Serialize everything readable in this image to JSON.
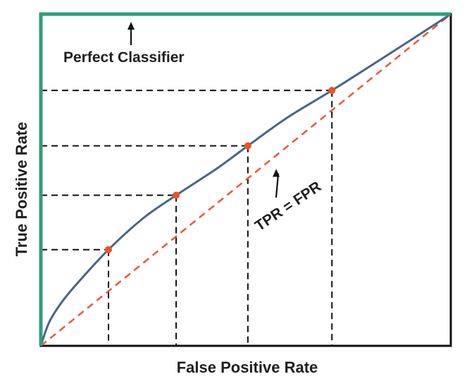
{
  "chart_data": {
    "type": "line",
    "xlabel": "False Positive Rate",
    "ylabel": "True Positive Rate",
    "xlim": [
      0,
      1
    ],
    "ylim": [
      0,
      1
    ],
    "grid": false,
    "series": [
      {
        "role": "roc-curve",
        "color": "#4a6486",
        "points": [
          {
            "x": 0.0,
            "y": 0.0
          },
          {
            "x": 0.02,
            "y": 0.07
          },
          {
            "x": 0.05,
            "y": 0.13
          },
          {
            "x": 0.09,
            "y": 0.19
          },
          {
            "x": 0.165,
            "y": 0.29
          },
          {
            "x": 0.25,
            "y": 0.385
          },
          {
            "x": 0.33,
            "y": 0.454
          },
          {
            "x": 0.43,
            "y": 0.535
          },
          {
            "x": 0.505,
            "y": 0.603
          },
          {
            "x": 0.6,
            "y": 0.687
          },
          {
            "x": 0.71,
            "y": 0.77
          },
          {
            "x": 0.85,
            "y": 0.88
          },
          {
            "x": 1.0,
            "y": 1.0
          }
        ]
      },
      {
        "role": "tpr-equals-fpr",
        "color": "#e35a3c",
        "dashed": true,
        "points": [
          {
            "x": 0,
            "y": 0
          },
          {
            "x": 1,
            "y": 1
          }
        ]
      },
      {
        "role": "perfect-classifier",
        "color": "#2f9e7c",
        "points": [
          {
            "x": 0,
            "y": 0
          },
          {
            "x": 0,
            "y": 1
          },
          {
            "x": 1,
            "y": 1
          }
        ]
      }
    ],
    "threshold_points": [
      {
        "x": 0.165,
        "y": 0.29
      },
      {
        "x": 0.33,
        "y": 0.454
      },
      {
        "x": 0.505,
        "y": 0.603
      },
      {
        "x": 0.71,
        "y": 0.77
      }
    ],
    "threshold_point_color": "#f4511e",
    "annotations": [
      {
        "text": "Perfect Classifier",
        "arrow_to": {
          "x": 0.22,
          "y": 1.0
        }
      },
      {
        "text": "TPR = FPR",
        "arrow_to": {
          "x": 0.55,
          "y": 0.55
        }
      }
    ]
  }
}
